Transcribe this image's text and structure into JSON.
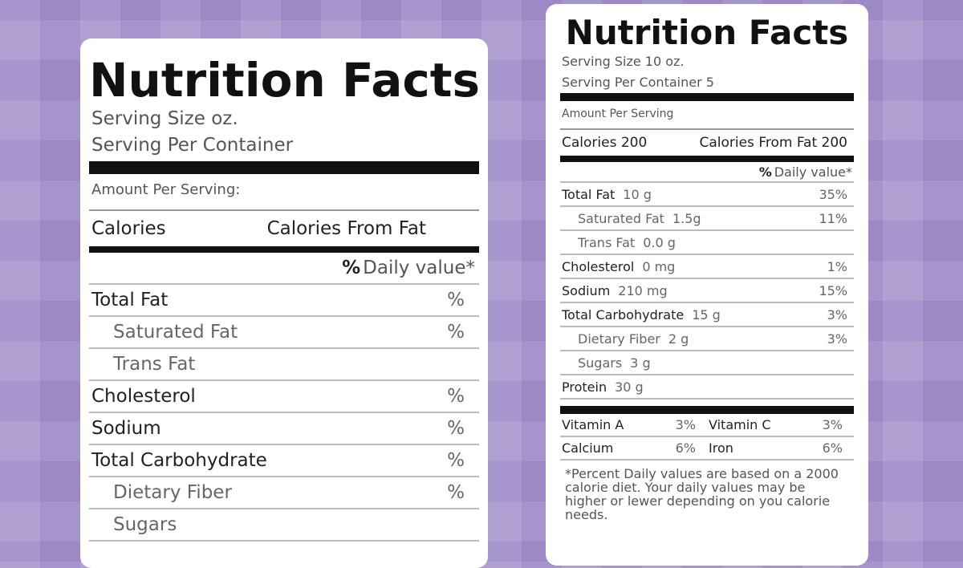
{
  "left_label": {
    "title": "Nutrition Facts",
    "serving_size": "Serving Size oz.",
    "servings_per_container": "Serving Per Container",
    "amount_per_serving": "Amount Per Serving:",
    "calories": "Calories",
    "calories_from_fat": "Calories From Fat",
    "daily_value_symbol": "%",
    "daily_value_header": "Daily value*",
    "nutrients": [
      {
        "name": "Total Fat",
        "dv": "%",
        "indent": false
      },
      {
        "name": "Saturated Fat",
        "dv": "%",
        "indent": true
      },
      {
        "name": "Trans Fat",
        "indent": true
      },
      {
        "name": "Cholesterol",
        "dv": "%",
        "indent": false
      },
      {
        "name": "Sodium",
        "dv": "%",
        "indent": false
      },
      {
        "name": "Total Carbohydrate",
        "dv": "%",
        "indent": false
      },
      {
        "name": "Dietary Fiber",
        "dv": "%",
        "indent": true
      },
      {
        "name": "Sugars",
        "indent": true
      }
    ]
  },
  "right_label": {
    "title": "Nutrition Facts",
    "serving_size": "Serving Size 10 oz.",
    "servings_per_container": "Serving Per Container 5",
    "amount_per_serving": "Amount Per Serving",
    "calories": "Calories 200",
    "calories_from_fat": "Calories From Fat 200",
    "daily_value_symbol": "%",
    "daily_value_header": "Daily value*",
    "nutrients": [
      {
        "name": "Total Fat",
        "amount": "10 g",
        "dv": "35%",
        "indent": false
      },
      {
        "name": "Saturated Fat",
        "amount": "1.5g",
        "dv": "11%",
        "indent": true
      },
      {
        "name": "Trans Fat",
        "amount": "0.0 g",
        "indent": true
      },
      {
        "name": "Cholesterol",
        "amount": "0 mg",
        "dv": "1%",
        "indent": false
      },
      {
        "name": "Sodium",
        "amount": "210 mg",
        "dv": "15%",
        "indent": false
      },
      {
        "name": "Total Carbohydrate",
        "amount": "15 g",
        "dv": "3%",
        "indent": false
      },
      {
        "name": "Dietary Fiber",
        "amount": "2 g",
        "dv": "3%",
        "indent": true
      },
      {
        "name": "Sugars",
        "amount": "3 g",
        "indent": true
      },
      {
        "name": "Protein",
        "amount": "30 g",
        "indent": false
      }
    ],
    "vitamins": [
      [
        {
          "name": "Vitamin A",
          "dv": "3%"
        },
        {
          "name": "Vitamin C",
          "dv": "3%"
        }
      ],
      [
        {
          "name": "Calcium",
          "dv": "6%"
        },
        {
          "name": "Iron",
          "dv": "6%"
        }
      ]
    ],
    "footnote": "*Percent Daily values are based on a 2000 calorie diet. Your daily values may be higher or lewer depending on you calorie needs."
  }
}
